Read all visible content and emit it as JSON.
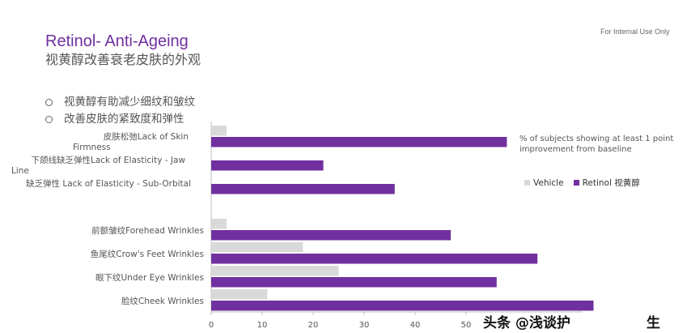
{
  "slide": {
    "title": "Retinol- Anti-Ageing",
    "subtitle": "视黄醇改善衰老皮肤的外观",
    "note": "For Internal Use Only",
    "bullets": [
      "视黄醇有助减少细纹和皱纹",
      "改善皮肤的紧致度和弹性"
    ],
    "watermark": "头条 @浅谈护",
    "watermark_suffix": "生"
  },
  "colors": {
    "vehicle": "#d9d9d9",
    "retinol": "#7030a0",
    "title": "#7030a0"
  },
  "chart_data": {
    "type": "bar",
    "orientation": "horizontal",
    "title": "",
    "annotation": "% of subjects showing at least 1 point improvement from baseline",
    "categories": [
      "皮肤松弛Lack of Skin Firmness",
      "下颌线缺乏弹性Lack of Elasticity - Jaw Line",
      "缺乏弹性 Lack of Elasticity - Sub-Orbital",
      "前额皱纹Forehead Wrinkles",
      "鱼尾纹Crow's Feet Wrinkles",
      "眼下纹Under Eye Wrinkles",
      "脸纹Cheek Wrinkles"
    ],
    "series": [
      {
        "name": "Vehicle",
        "values": [
          3,
          0,
          0,
          3,
          18,
          25,
          11
        ]
      },
      {
        "name": "Retinol 视黄醇",
        "values": [
          58,
          22,
          36,
          47,
          64,
          56,
          75
        ]
      }
    ],
    "xlim": [
      0,
      80
    ],
    "xticks": [
      0,
      10,
      20,
      30,
      40,
      50
    ],
    "grid": false,
    "legend": "right"
  }
}
